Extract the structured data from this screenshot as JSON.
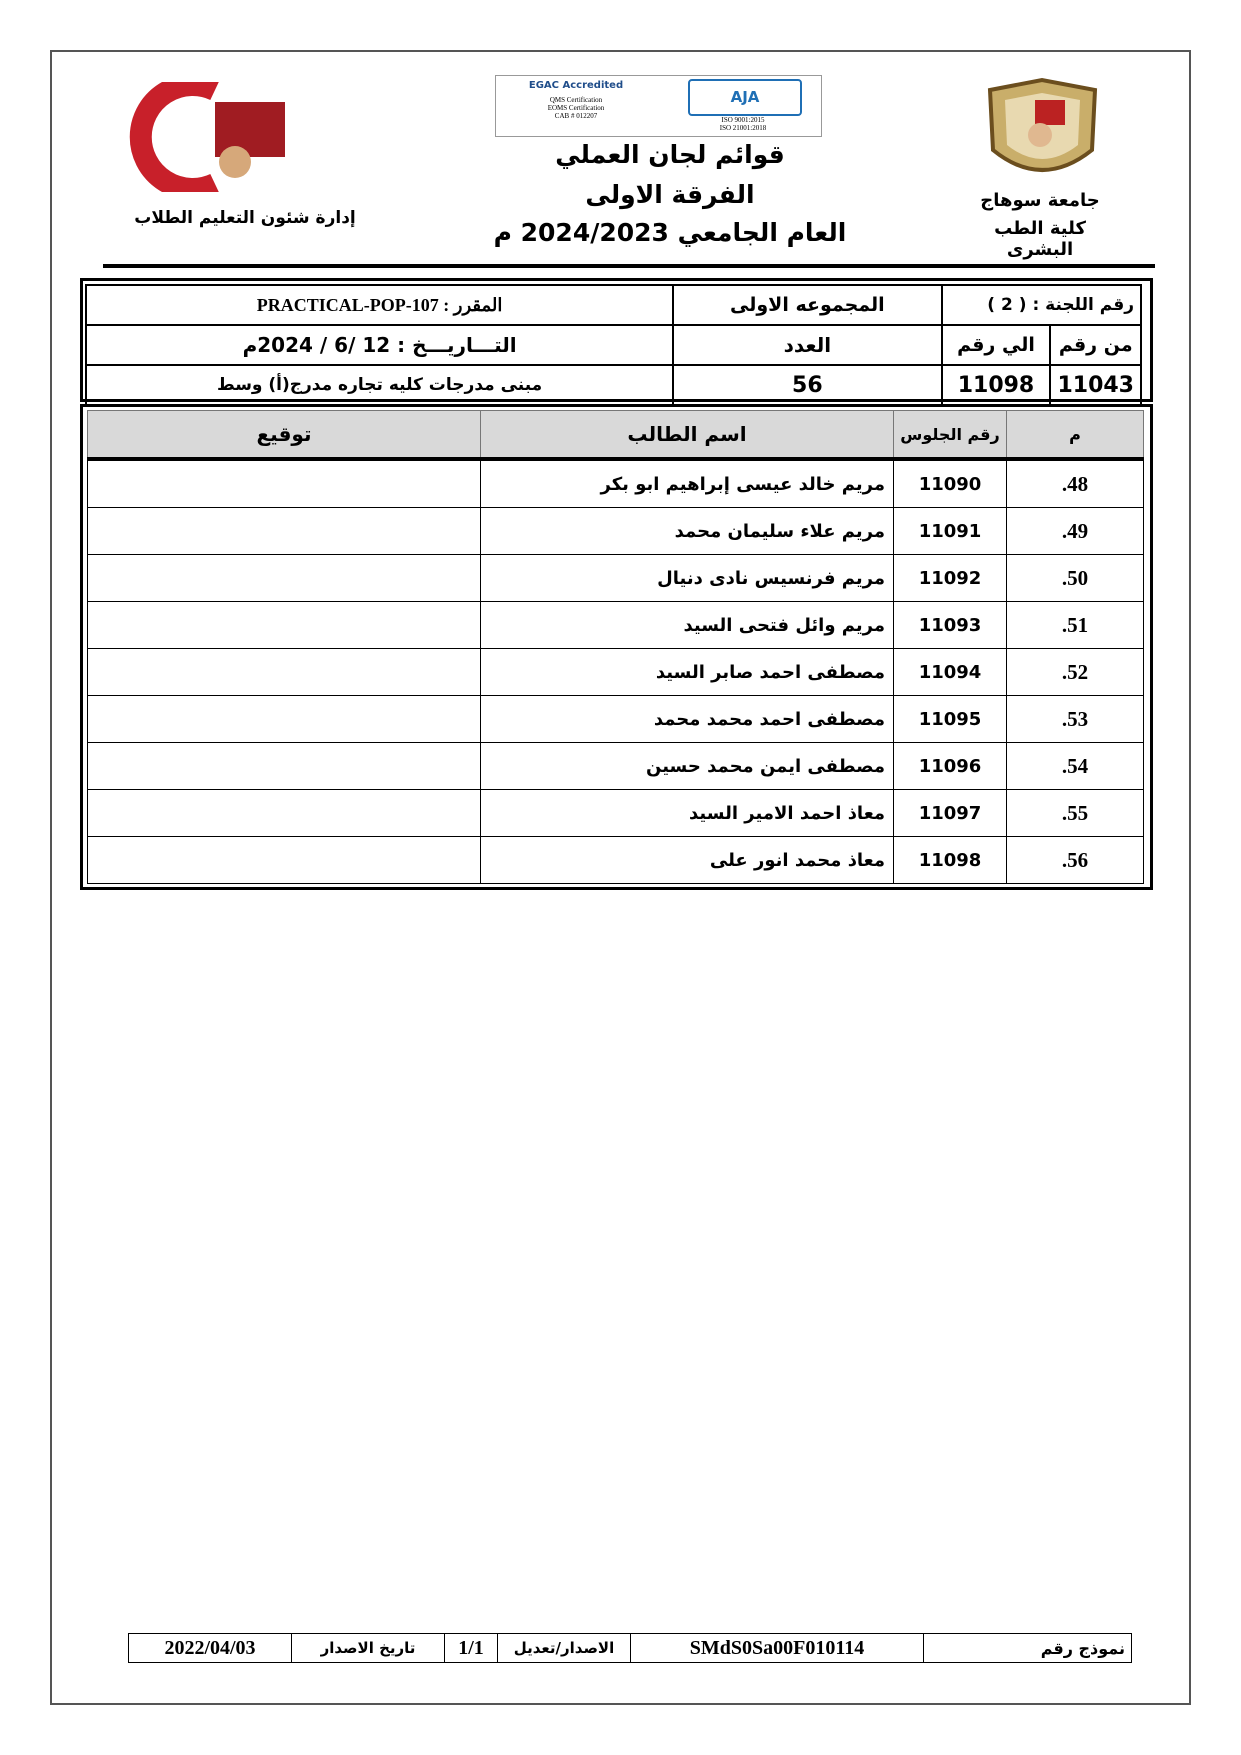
{
  "header": {
    "right_logo_text": "جامعة سوهاج",
    "university": "جامعة سوهاج",
    "faculty": "كلية الطب البشرى",
    "left_logo_text": "جامعة سوهاج كلية الطب",
    "department": "إدارة شئون التعليم الطلاب",
    "accreditation": {
      "egac": "EGAC Accredited",
      "egac_lines": [
        "QMS Certification",
        "EOMS Certification",
        "CAB # 012207"
      ],
      "aja": "AJA",
      "aja_lines": [
        "ISO 9001:2015",
        "ISO 21001:2018"
      ]
    },
    "title_1": "قوائم لجان العملي",
    "title_2": "الفرقة الاولى",
    "title_3": "العام الجامعي 2024/2023 م"
  },
  "info": {
    "committee": "رقم اللجنة : ( 2 )",
    "group": "المجموعه الاولى",
    "course": "المقرر : PRACTICAL-POP-107",
    "from_label": "من رقم",
    "to_label": "الي رقم",
    "count_label": "العدد",
    "date": "التـــاريـــخ :  12 /6 / 2024م",
    "from_value": "11043",
    "to_value": "11098",
    "count_value": "56",
    "location": "مبنى مدرجات كليه تجاره مدرج(أ) وسط"
  },
  "table": {
    "headers": [
      "م",
      "رقم الجلوس",
      "اسم الطالب",
      "توقيع"
    ],
    "rows": [
      {
        "num": ".48",
        "seat": "11090",
        "name": "مريم خالد عيسى إبراهيم ابو بكر"
      },
      {
        "num": ".49",
        "seat": "11091",
        "name": "مريم علاء سليمان محمد"
      },
      {
        "num": ".50",
        "seat": "11092",
        "name": "مريم فرنسيس نادى دنيال"
      },
      {
        "num": ".51",
        "seat": "11093",
        "name": "مريم وائل فتحى السيد"
      },
      {
        "num": ".52",
        "seat": "11094",
        "name": "مصطفى احمد صابر السيد"
      },
      {
        "num": ".53",
        "seat": "11095",
        "name": "مصطفى احمد محمد محمد"
      },
      {
        "num": ".54",
        "seat": "11096",
        "name": "مصطفى ايمن محمد حسين"
      },
      {
        "num": ".55",
        "seat": "11097",
        "name": "معاذ احمد الامير السيد"
      },
      {
        "num": ".56",
        "seat": "11098",
        "name": "معاذ محمد انور على"
      }
    ]
  },
  "footer": {
    "form_label": "نموذج رقم",
    "form_value": "SMdS0Sa00F010114",
    "version_label": "الاصدار/تعديل",
    "version_value": "1/1",
    "issue_label": "تاريخ الاصدار",
    "issue_value": "2022/04/03"
  }
}
